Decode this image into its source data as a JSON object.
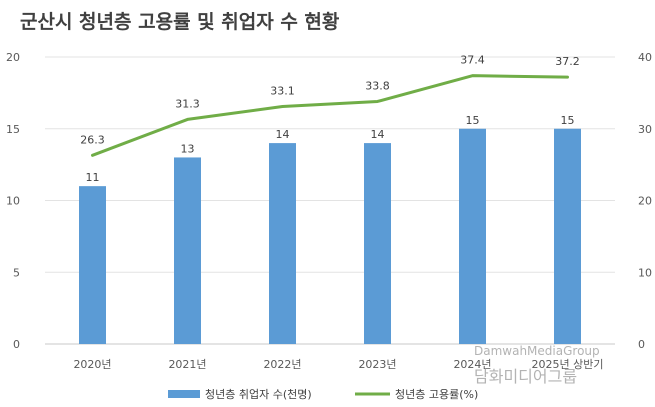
{
  "chart_data": {
    "type": "bar+line",
    "title": "군산시 청년층 고용률 및 취업자 수 현황",
    "categories": [
      "2020년",
      "2021년",
      "2022년",
      "2023년",
      "2024년",
      "2025년 상반기"
    ],
    "series": [
      {
        "name": "청년층 취업자 수(천명)",
        "type": "bar",
        "axis": "left",
        "color": "#5b9bd5",
        "values": [
          11,
          13,
          14,
          14,
          15,
          15
        ]
      },
      {
        "name": "청년층 고용률(%)",
        "type": "line",
        "axis": "right",
        "color": "#70ad47",
        "values": [
          26.3,
          31.3,
          33.1,
          33.8,
          37.4,
          37.2
        ]
      }
    ],
    "y_left": {
      "min": 0,
      "max": 20,
      "ticks": [
        "0",
        "5",
        "10",
        "15",
        "20"
      ]
    },
    "y_right": {
      "min": 0,
      "max": 40,
      "ticks": [
        "0",
        "10",
        "20",
        "30",
        "40"
      ]
    },
    "grid": true,
    "legend": "bottom"
  },
  "watermark": {
    "en": "DamwahMediaGroup",
    "ko": "담화미디어그룹"
  }
}
